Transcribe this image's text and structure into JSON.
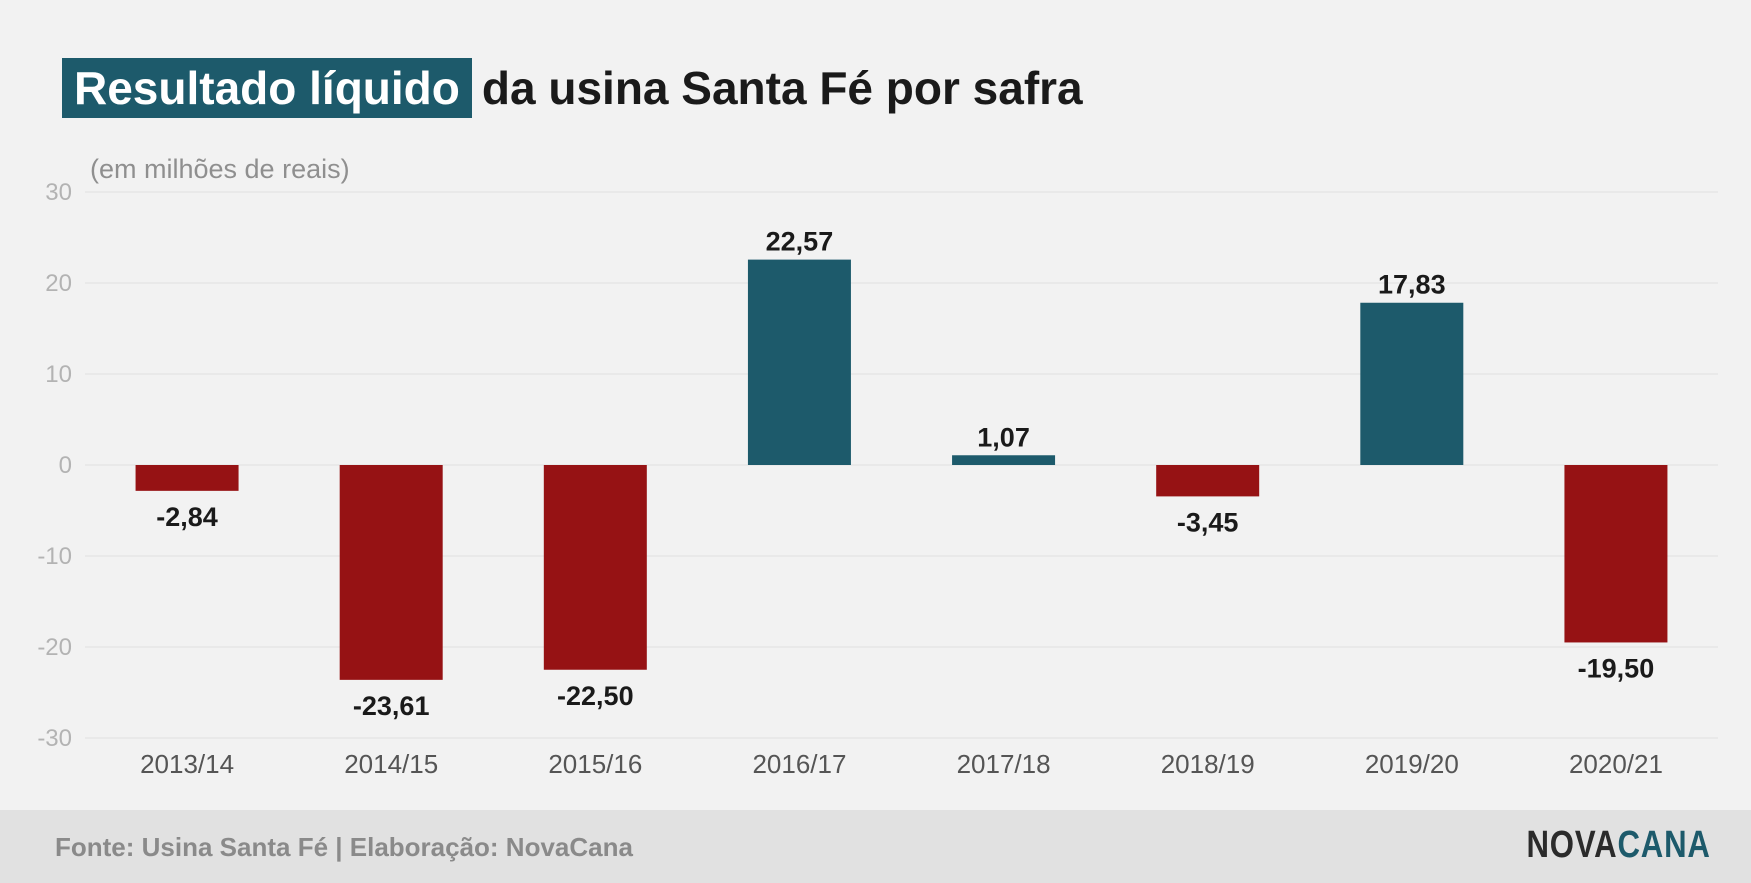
{
  "title": {
    "highlight": "Resultado líquido",
    "rest": "da usina Santa Fé por safra"
  },
  "subtitle": "(em milhões de reais)",
  "footer": {
    "source": "Fonte: Usina Santa Fé | Elaboração: NovaCana",
    "logo_part1": "NOVA",
    "logo_part2": "CANA"
  },
  "colors": {
    "positive": "#1d5a6b",
    "negative": "#961214",
    "highlight_bg": "#1d5a6b"
  },
  "chart_data": {
    "type": "bar",
    "title": "Resultado líquido da usina Santa Fé por safra",
    "subtitle": "(em milhões de reais)",
    "categories": [
      "2013/14",
      "2014/15",
      "2015/16",
      "2016/17",
      "2017/18",
      "2018/19",
      "2019/20",
      "2020/21"
    ],
    "values": [
      -2.84,
      -23.61,
      -22.5,
      22.57,
      1.07,
      -3.45,
      17.83,
      -19.5
    ],
    "value_labels": [
      "-2,84",
      "-23,61",
      "-22,50",
      "22,57",
      "1,07",
      "-3,45",
      "17,83",
      "-19,50"
    ],
    "ylim": [
      -30,
      30
    ],
    "yticks": [
      30,
      20,
      10,
      0,
      -10,
      -20,
      -30
    ],
    "ytick_labels": [
      "30",
      "20",
      "10",
      "0",
      "-10",
      "-20",
      "-30"
    ],
    "grid": true,
    "legend": "none"
  }
}
